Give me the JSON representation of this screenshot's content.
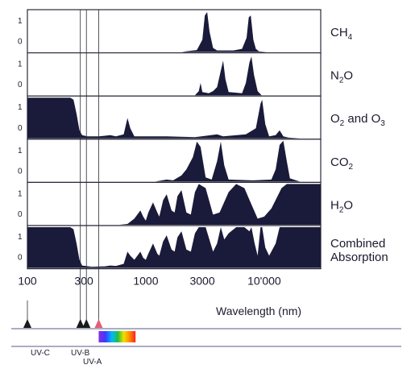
{
  "chart_data": {
    "type": "area",
    "x_scale": "log",
    "x_ticks": [
      {
        "value": 100,
        "label": "100"
      },
      {
        "value": 300,
        "label": "300"
      },
      {
        "value": 1000,
        "label": "1000"
      },
      {
        "value": 3000,
        "label": "3000"
      },
      {
        "value": 10000,
        "label": "10'000"
      }
    ],
    "xlabel": "Wavelength (nm)",
    "y_ticks": [
      "0",
      "1"
    ],
    "ylim": [
      0,
      1
    ],
    "fill_color": "#1a1a3a",
    "panels": [
      {
        "label_main": "CH",
        "label_sub": "4",
        "label_rest": "",
        "points": [
          [
            100,
            0
          ],
          [
            2000,
            0
          ],
          [
            2200,
            0.02
          ],
          [
            2700,
            0.05
          ],
          [
            3000,
            0.3
          ],
          [
            3150,
            0.9
          ],
          [
            3300,
            0.98
          ],
          [
            3450,
            0.5
          ],
          [
            3700,
            0.1
          ],
          [
            4000,
            0.04
          ],
          [
            5500,
            0.04
          ],
          [
            6500,
            0.08
          ],
          [
            7100,
            0.35
          ],
          [
            7400,
            0.85
          ],
          [
            7700,
            0.9
          ],
          [
            8100,
            0.3
          ],
          [
            8500,
            0.08
          ],
          [
            9000,
            0.02
          ],
          [
            10500,
            0
          ]
        ]
      },
      {
        "label_main": "N",
        "label_sub": "2",
        "label_rest": "O",
        "points": [
          [
            100,
            0
          ],
          [
            2600,
            0
          ],
          [
            2800,
            0.1
          ],
          [
            2900,
            0.3
          ],
          [
            3000,
            0.08
          ],
          [
            3400,
            0.05
          ],
          [
            3700,
            0.1
          ],
          [
            4000,
            0.2
          ],
          [
            4300,
            0.6
          ],
          [
            4500,
            0.85
          ],
          [
            4700,
            0.4
          ],
          [
            5000,
            0.08
          ],
          [
            6500,
            0.05
          ],
          [
            7000,
            0.3
          ],
          [
            7500,
            0.8
          ],
          [
            7800,
            0.95
          ],
          [
            8200,
            0.5
          ],
          [
            8800,
            0.1
          ],
          [
            9500,
            0
          ]
        ]
      },
      {
        "label_main": "O",
        "label_sub": "2",
        "label_rest": " and O",
        "label_sub2": "3",
        "points": [
          [
            100,
            1
          ],
          [
            230,
            1
          ],
          [
            245,
            0.95
          ],
          [
            260,
            0.6
          ],
          [
            275,
            0.2
          ],
          [
            290,
            0.08
          ],
          [
            320,
            0.05
          ],
          [
            400,
            0.05
          ],
          [
            500,
            0.08
          ],
          [
            560,
            0.05
          ],
          [
            650,
            0.1
          ],
          [
            700,
            0.5
          ],
          [
            740,
            0.25
          ],
          [
            800,
            0.05
          ],
          [
            1500,
            0.05
          ],
          [
            2600,
            0.03
          ],
          [
            4000,
            0.1
          ],
          [
            4500,
            0.05
          ],
          [
            7000,
            0.1
          ],
          [
            8500,
            0.25
          ],
          [
            9300,
            0.85
          ],
          [
            9600,
            0.95
          ],
          [
            10200,
            0.35
          ],
          [
            11000,
            0.05
          ],
          [
            12500,
            0.08
          ],
          [
            13500,
            0.2
          ],
          [
            14500,
            0.05
          ],
          [
            16000,
            0.02
          ],
          [
            20000,
            0
          ]
        ]
      },
      {
        "label_main": "CO",
        "label_sub": "2",
        "label_rest": "",
        "points": [
          [
            100,
            0
          ],
          [
            1200,
            0
          ],
          [
            1500,
            0.05
          ],
          [
            1700,
            0.03
          ],
          [
            2000,
            0.15
          ],
          [
            2200,
            0.3
          ],
          [
            2500,
            0.6
          ],
          [
            2700,
            0.98
          ],
          [
            2900,
            0.85
          ],
          [
            3200,
            0.1
          ],
          [
            3600,
            0.05
          ],
          [
            4000,
            0.5
          ],
          [
            4300,
            0.98
          ],
          [
            4600,
            0.4
          ],
          [
            5000,
            0.05
          ],
          [
            8000,
            0.03
          ],
          [
            11500,
            0.05
          ],
          [
            12500,
            0.3
          ],
          [
            13500,
            0.9
          ],
          [
            14500,
            1
          ],
          [
            15500,
            0.5
          ],
          [
            16500,
            0.08
          ],
          [
            20000,
            0
          ]
        ]
      },
      {
        "label_main": "H",
        "label_sub": "2",
        "label_rest": "O",
        "points": [
          [
            100,
            0
          ],
          [
            600,
            0
          ],
          [
            700,
            0.02
          ],
          [
            800,
            0.15
          ],
          [
            900,
            0.35
          ],
          [
            950,
            0.2
          ],
          [
            1000,
            0.1
          ],
          [
            1050,
            0.3
          ],
          [
            1150,
            0.55
          ],
          [
            1250,
            0.3
          ],
          [
            1300,
            0.2
          ],
          [
            1400,
            0.6
          ],
          [
            1500,
            0.75
          ],
          [
            1650,
            0.35
          ],
          [
            1750,
            0.3
          ],
          [
            1850,
            0.7
          ],
          [
            2000,
            0.85
          ],
          [
            2200,
            0.3
          ],
          [
            2400,
            0.25
          ],
          [
            2600,
            0.8
          ],
          [
            2800,
            1
          ],
          [
            3200,
            0.9
          ],
          [
            3700,
            0.25
          ],
          [
            4200,
            0.3
          ],
          [
            5000,
            0.8
          ],
          [
            5800,
            1
          ],
          [
            6800,
            0.9
          ],
          [
            7800,
            0.5
          ],
          [
            8800,
            0.15
          ],
          [
            10000,
            0.2
          ],
          [
            11500,
            0.4
          ],
          [
            14000,
            0.9
          ],
          [
            15500,
            1
          ],
          [
            20000,
            1
          ],
          [
            30000,
            1
          ]
        ]
      },
      {
        "label_main": "Combined",
        "label_sub": "",
        "label_rest": "",
        "label_line2": "Absorption",
        "points": [
          [
            100,
            1
          ],
          [
            230,
            1
          ],
          [
            245,
            0.95
          ],
          [
            260,
            0.6
          ],
          [
            275,
            0.2
          ],
          [
            290,
            0.06
          ],
          [
            350,
            0.03
          ],
          [
            450,
            0.04
          ],
          [
            500,
            0.06
          ],
          [
            560,
            0.05
          ],
          [
            650,
            0.1
          ],
          [
            700,
            0.4
          ],
          [
            740,
            0.3
          ],
          [
            800,
            0.2
          ],
          [
            900,
            0.4
          ],
          [
            950,
            0.25
          ],
          [
            1000,
            0.2
          ],
          [
            1050,
            0.35
          ],
          [
            1150,
            0.6
          ],
          [
            1250,
            0.35
          ],
          [
            1300,
            0.3
          ],
          [
            1400,
            0.65
          ],
          [
            1500,
            0.8
          ],
          [
            1650,
            0.45
          ],
          [
            1750,
            0.4
          ],
          [
            1850,
            0.75
          ],
          [
            2000,
            0.9
          ],
          [
            2200,
            0.45
          ],
          [
            2400,
            0.4
          ],
          [
            2600,
            0.85
          ],
          [
            2800,
            1
          ],
          [
            3200,
            1
          ],
          [
            3700,
            0.4
          ],
          [
            4000,
            0.6
          ],
          [
            4300,
            1
          ],
          [
            4600,
            0.7
          ],
          [
            5000,
            0.85
          ],
          [
            5800,
            1
          ],
          [
            6800,
            1
          ],
          [
            7500,
            0.9
          ],
          [
            7800,
            1
          ],
          [
            8300,
            0.6
          ],
          [
            8800,
            0.3
          ],
          [
            9300,
            1
          ],
          [
            9600,
            1
          ],
          [
            10200,
            0.5
          ],
          [
            11000,
            0.3
          ],
          [
            12500,
            0.6
          ],
          [
            13500,
            1
          ],
          [
            20000,
            1
          ],
          [
            30000,
            1
          ]
        ]
      }
    ],
    "uv_bands": [
      {
        "label": "UV-C",
        "value": 100,
        "marker_color": "#1a1a1a"
      },
      {
        "label": "UV-B",
        "value": 280,
        "marker_color": "#1a1a1a"
      },
      {
        "label": "UV-A",
        "value": 315,
        "marker_color": "#1a1a1a"
      },
      {
        "label": "",
        "value": 400,
        "marker_color": "#e0607a"
      }
    ],
    "visible_spectrum": {
      "from": 400,
      "to": 700
    }
  }
}
